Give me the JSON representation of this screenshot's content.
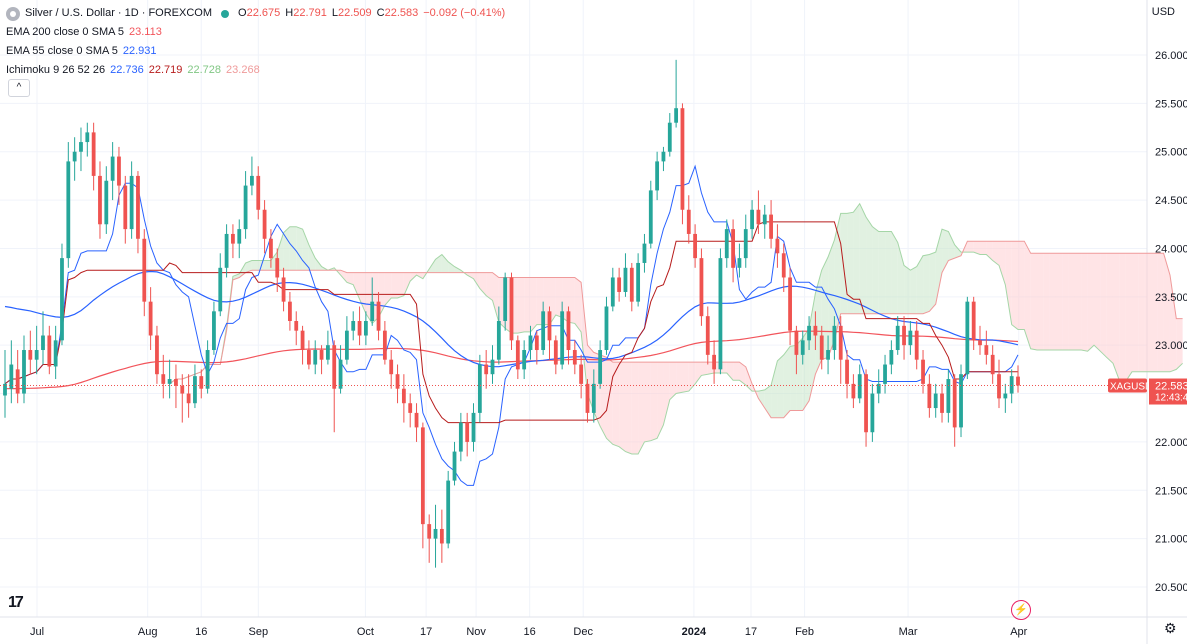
{
  "header": {
    "symbol_title": "Silver / U.S. Dollar · 1D · FOREXCOM",
    "ohlc": [
      {
        "k": "O",
        "v": "22.675"
      },
      {
        "k": "H",
        "v": "22.791"
      },
      {
        "k": "L",
        "v": "22.509"
      },
      {
        "k": "C",
        "v": "22.583"
      }
    ],
    "change": "−0.092 (−0.41%)",
    "ind1_label": "EMA 200 close 0 SMA 5",
    "ind1_value": "23.113",
    "ind2_label": "EMA 55 close 0 SMA 5",
    "ind2_value": "22.931",
    "ind3_label": "Ichimoku 9 26 52 26",
    "ind3_values": [
      "22.736",
      "22.719",
      "22.728",
      "23.268"
    ],
    "collapse_glyph": "^"
  },
  "axis": {
    "currency": "USD"
  },
  "price_tag": {
    "symbol": "XAGUSD",
    "price": "22.583",
    "countdown": "12:43:4"
  },
  "icons": {
    "logo": "tradingview-logo-icon",
    "bolt": "lightning-icon",
    "settings": "gear-icon"
  },
  "logo_text": "17",
  "settings_glyph": "⚙",
  "colors": {
    "up": "#26a69a",
    "down": "#ef5350",
    "ema200": "#f2545b",
    "ema55": "#2962ff",
    "tenkan": "#2962ff",
    "kijun": "#b71c1c",
    "cloud_bull": "#c8e6c9",
    "cloud_bear": "#ffcdd2"
  },
  "chart_data": {
    "type": "candlestick",
    "title": "Silver / U.S. Dollar · 1D · FOREXCOM",
    "ylim": [
      20.3,
      26.4
    ],
    "y_ticks": [
      "26.000",
      "25.500",
      "25.000",
      "24.500",
      "24.000",
      "23.500",
      "23.000",
      "22.500",
      "22.000",
      "21.500",
      "21.000",
      "20.500"
    ],
    "x_ticks": [
      "Jul",
      "Aug",
      "16",
      "Sep",
      "Oct",
      "17",
      "Nov",
      "16",
      "Dec",
      "2024",
      "17",
      "Feb",
      "Mar",
      "Apr"
    ],
    "x_tick_days": [
      0,
      31,
      46,
      62,
      92,
      109,
      123,
      138,
      153,
      184,
      200,
      215,
      244,
      275
    ],
    "candles": [
      {
        "o": 22.48,
        "c": 22.6,
        "h": 22.95,
        "l": 22.25
      },
      {
        "o": 22.55,
        "c": 22.8,
        "h": 23.05,
        "l": 22.4
      },
      {
        "o": 22.75,
        "c": 22.5,
        "h": 22.95,
        "l": 22.4
      },
      {
        "o": 22.5,
        "c": 22.95,
        "h": 23.1,
        "l": 22.4
      },
      {
        "o": 22.95,
        "c": 22.85,
        "h": 23.15,
        "l": 22.7
      },
      {
        "o": 22.85,
        "c": 22.95,
        "h": 23.2,
        "l": 22.7
      },
      {
        "o": 22.95,
        "c": 23.1,
        "h": 23.35,
        "l": 22.8
      },
      {
        "o": 23.1,
        "c": 22.78,
        "h": 23.2,
        "l": 22.7
      },
      {
        "o": 22.78,
        "c": 23.05,
        "h": 23.2,
        "l": 22.65
      },
      {
        "o": 23.05,
        "c": 23.9,
        "h": 24.05,
        "l": 23.0
      },
      {
        "o": 23.9,
        "c": 24.9,
        "h": 25.1,
        "l": 23.8
      },
      {
        "o": 24.9,
        "c": 25.0,
        "h": 25.15,
        "l": 24.7
      },
      {
        "o": 25.0,
        "c": 25.1,
        "h": 25.25,
        "l": 24.8
      },
      {
        "o": 25.1,
        "c": 25.2,
        "h": 25.3,
        "l": 24.95
      },
      {
        "o": 25.2,
        "c": 24.75,
        "h": 25.3,
        "l": 24.6
      },
      {
        "o": 24.75,
        "c": 24.25,
        "h": 24.9,
        "l": 24.1
      },
      {
        "o": 24.25,
        "c": 24.7,
        "h": 24.85,
        "l": 24.15
      },
      {
        "o": 24.7,
        "c": 24.95,
        "h": 25.1,
        "l": 24.5
      },
      {
        "o": 24.95,
        "c": 24.65,
        "h": 25.05,
        "l": 24.45
      },
      {
        "o": 24.65,
        "c": 24.2,
        "h": 24.75,
        "l": 24.05
      },
      {
        "o": 24.2,
        "c": 24.75,
        "h": 24.9,
        "l": 24.1
      },
      {
        "o": 24.75,
        "c": 24.1,
        "h": 24.8,
        "l": 23.95
      },
      {
        "o": 24.1,
        "c": 23.45,
        "h": 24.2,
        "l": 23.3
      },
      {
        "o": 23.45,
        "c": 23.1,
        "h": 23.6,
        "l": 22.95
      },
      {
        "o": 23.1,
        "c": 22.7,
        "h": 23.2,
        "l": 22.6
      },
      {
        "o": 22.7,
        "c": 22.6,
        "h": 22.9,
        "l": 22.45
      },
      {
        "o": 22.6,
        "c": 22.65,
        "h": 22.85,
        "l": 22.45
      },
      {
        "o": 22.65,
        "c": 22.58,
        "h": 22.8,
        "l": 22.35
      },
      {
        "o": 22.58,
        "c": 22.5,
        "h": 22.7,
        "l": 22.2
      },
      {
        "o": 22.5,
        "c": 22.4,
        "h": 22.7,
        "l": 22.25
      },
      {
        "o": 22.4,
        "c": 22.68,
        "h": 22.8,
        "l": 22.35
      },
      {
        "o": 22.68,
        "c": 22.55,
        "h": 22.75,
        "l": 22.45
      },
      {
        "o": 22.55,
        "c": 22.95,
        "h": 23.05,
        "l": 22.5
      },
      {
        "o": 22.95,
        "c": 23.35,
        "h": 23.45,
        "l": 22.9
      },
      {
        "o": 23.35,
        "c": 23.8,
        "h": 23.95,
        "l": 23.3
      },
      {
        "o": 23.8,
        "c": 24.15,
        "h": 24.25,
        "l": 23.7
      },
      {
        "o": 24.15,
        "c": 24.05,
        "h": 24.25,
        "l": 23.9
      },
      {
        "o": 24.05,
        "c": 24.2,
        "h": 24.3,
        "l": 23.9
      },
      {
        "o": 24.2,
        "c": 24.65,
        "h": 24.8,
        "l": 24.1
      },
      {
        "o": 24.65,
        "c": 24.75,
        "h": 24.95,
        "l": 24.55
      },
      {
        "o": 24.75,
        "c": 24.4,
        "h": 24.85,
        "l": 24.3
      },
      {
        "o": 24.4,
        "c": 24.1,
        "h": 24.5,
        "l": 23.95
      },
      {
        "o": 24.1,
        "c": 23.9,
        "h": 24.2,
        "l": 23.8
      },
      {
        "o": 23.9,
        "c": 23.7,
        "h": 24.0,
        "l": 23.55
      },
      {
        "o": 23.7,
        "c": 23.45,
        "h": 23.8,
        "l": 23.35
      },
      {
        "o": 23.45,
        "c": 23.25,
        "h": 23.55,
        "l": 23.15
      },
      {
        "o": 23.25,
        "c": 23.15,
        "h": 23.35,
        "l": 23.0
      },
      {
        "o": 23.15,
        "c": 22.95,
        "h": 23.2,
        "l": 22.8
      },
      {
        "o": 22.95,
        "c": 22.8,
        "h": 23.05,
        "l": 22.75
      },
      {
        "o": 22.8,
        "c": 22.95,
        "h": 23.05,
        "l": 22.7
      },
      {
        "o": 22.95,
        "c": 22.85,
        "h": 23.0,
        "l": 22.7
      },
      {
        "o": 22.85,
        "c": 23.0,
        "h": 23.15,
        "l": 22.8
      },
      {
        "o": 23.0,
        "c": 22.55,
        "h": 23.05,
        "l": 22.1
      },
      {
        "o": 22.55,
        "c": 22.85,
        "h": 23.0,
        "l": 22.5
      },
      {
        "o": 22.85,
        "c": 23.15,
        "h": 23.3,
        "l": 22.8
      },
      {
        "o": 23.15,
        "c": 23.25,
        "h": 23.35,
        "l": 23.05
      },
      {
        "o": 23.25,
        "c": 23.1,
        "h": 23.4,
        "l": 23.0
      },
      {
        "o": 23.1,
        "c": 23.25,
        "h": 23.35,
        "l": 23.0
      },
      {
        "o": 23.25,
        "c": 23.45,
        "h": 23.7,
        "l": 23.2
      },
      {
        "o": 23.45,
        "c": 23.15,
        "h": 23.55,
        "l": 23.05
      },
      {
        "o": 23.15,
        "c": 22.85,
        "h": 23.25,
        "l": 22.8
      },
      {
        "o": 22.85,
        "c": 22.7,
        "h": 22.95,
        "l": 22.55
      },
      {
        "o": 22.7,
        "c": 22.55,
        "h": 22.8,
        "l": 22.4
      },
      {
        "o": 22.55,
        "c": 22.4,
        "h": 22.7,
        "l": 22.2
      },
      {
        "o": 22.4,
        "c": 22.3,
        "h": 22.5,
        "l": 22.15
      },
      {
        "o": 22.3,
        "c": 22.15,
        "h": 22.4,
        "l": 22.0
      },
      {
        "o": 22.15,
        "c": 21.15,
        "h": 22.2,
        "l": 20.9
      },
      {
        "o": 21.15,
        "c": 21.0,
        "h": 21.25,
        "l": 20.75
      },
      {
        "o": 21.0,
        "c": 21.1,
        "h": 21.35,
        "l": 20.7
      },
      {
        "o": 21.1,
        "c": 20.95,
        "h": 21.3,
        "l": 20.75
      },
      {
        "o": 20.95,
        "c": 21.6,
        "h": 21.7,
        "l": 20.9
      },
      {
        "o": 21.6,
        "c": 21.9,
        "h": 22.0,
        "l": 21.55
      },
      {
        "o": 21.9,
        "c": 22.2,
        "h": 22.3,
        "l": 21.8
      },
      {
        "o": 22.2,
        "c": 22.0,
        "h": 22.3,
        "l": 21.85
      },
      {
        "o": 22.0,
        "c": 22.3,
        "h": 22.4,
        "l": 21.9
      },
      {
        "o": 22.3,
        "c": 22.8,
        "h": 22.9,
        "l": 22.2
      },
      {
        "o": 22.8,
        "c": 22.7,
        "h": 22.95,
        "l": 22.55
      },
      {
        "o": 22.7,
        "c": 22.85,
        "h": 23.0,
        "l": 22.6
      },
      {
        "o": 22.85,
        "c": 23.25,
        "h": 23.4,
        "l": 22.8
      },
      {
        "o": 23.25,
        "c": 23.7,
        "h": 23.75,
        "l": 23.15
      },
      {
        "o": 23.7,
        "c": 23.05,
        "h": 23.75,
        "l": 22.95
      },
      {
        "o": 23.05,
        "c": 22.75,
        "h": 23.1,
        "l": 22.65
      },
      {
        "o": 22.75,
        "c": 22.95,
        "h": 23.05,
        "l": 22.65
      },
      {
        "o": 22.95,
        "c": 23.1,
        "h": 23.2,
        "l": 22.85
      },
      {
        "o": 23.1,
        "c": 22.95,
        "h": 23.15,
        "l": 22.8
      },
      {
        "o": 22.95,
        "c": 23.35,
        "h": 23.45,
        "l": 22.9
      },
      {
        "o": 23.35,
        "c": 23.05,
        "h": 23.4,
        "l": 22.85
      },
      {
        "o": 23.05,
        "c": 22.8,
        "h": 23.1,
        "l": 22.7
      },
      {
        "o": 22.8,
        "c": 23.35,
        "h": 23.45,
        "l": 22.75
      },
      {
        "o": 23.35,
        "c": 22.95,
        "h": 23.4,
        "l": 22.8
      },
      {
        "o": 22.95,
        "c": 22.8,
        "h": 23.05,
        "l": 22.7
      },
      {
        "o": 22.8,
        "c": 22.6,
        "h": 22.9,
        "l": 22.45
      },
      {
        "o": 22.6,
        "c": 22.3,
        "h": 22.65,
        "l": 22.2
      },
      {
        "o": 22.3,
        "c": 22.6,
        "h": 22.75,
        "l": 22.2
      },
      {
        "o": 22.6,
        "c": 22.95,
        "h": 23.05,
        "l": 22.55
      },
      {
        "o": 22.95,
        "c": 23.4,
        "h": 23.5,
        "l": 22.9
      },
      {
        "o": 23.4,
        "c": 23.7,
        "h": 23.8,
        "l": 23.35
      },
      {
        "o": 23.7,
        "c": 23.55,
        "h": 23.8,
        "l": 23.45
      },
      {
        "o": 23.55,
        "c": 23.8,
        "h": 23.95,
        "l": 23.5
      },
      {
        "o": 23.8,
        "c": 23.45,
        "h": 23.85,
        "l": 23.35
      },
      {
        "o": 23.45,
        "c": 23.85,
        "h": 23.95,
        "l": 23.4
      },
      {
        "o": 23.85,
        "c": 24.05,
        "h": 24.15,
        "l": 23.75
      },
      {
        "o": 24.05,
        "c": 24.6,
        "h": 24.7,
        "l": 24.0
      },
      {
        "o": 24.6,
        "c": 24.9,
        "h": 25.0,
        "l": 24.5
      },
      {
        "o": 24.9,
        "c": 25.0,
        "h": 25.05,
        "l": 24.8
      },
      {
        "o": 25.0,
        "c": 25.3,
        "h": 25.4,
        "l": 24.95
      },
      {
        "o": 25.3,
        "c": 25.45,
        "h": 25.95,
        "l": 25.25
      },
      {
        "o": 25.45,
        "c": 24.4,
        "h": 25.5,
        "l": 24.25
      },
      {
        "o": 24.4,
        "c": 24.15,
        "h": 24.55,
        "l": 24.05
      },
      {
        "o": 24.15,
        "c": 23.9,
        "h": 24.25,
        "l": 23.8
      },
      {
        "o": 23.9,
        "c": 23.3,
        "h": 24.0,
        "l": 23.2
      },
      {
        "o": 23.3,
        "c": 22.9,
        "h": 23.4,
        "l": 22.8
      },
      {
        "o": 22.9,
        "c": 22.75,
        "h": 23.05,
        "l": 22.6
      },
      {
        "o": 22.75,
        "c": 23.9,
        "h": 24.0,
        "l": 22.7
      },
      {
        "o": 23.9,
        "c": 24.2,
        "h": 24.3,
        "l": 23.8
      },
      {
        "o": 24.2,
        "c": 23.8,
        "h": 24.3,
        "l": 23.65
      },
      {
        "o": 23.8,
        "c": 23.9,
        "h": 24.05,
        "l": 23.7
      },
      {
        "o": 23.9,
        "c": 24.2,
        "h": 24.35,
        "l": 23.8
      },
      {
        "o": 24.2,
        "c": 24.4,
        "h": 24.5,
        "l": 24.1
      },
      {
        "o": 24.4,
        "c": 24.25,
        "h": 24.6,
        "l": 24.15
      },
      {
        "o": 24.25,
        "c": 24.35,
        "h": 24.45,
        "l": 24.1
      },
      {
        "o": 24.35,
        "c": 24.1,
        "h": 24.5,
        "l": 24.0
      },
      {
        "o": 24.1,
        "c": 23.95,
        "h": 24.25,
        "l": 23.8
      },
      {
        "o": 23.95,
        "c": 23.7,
        "h": 24.05,
        "l": 23.55
      },
      {
        "o": 23.7,
        "c": 23.15,
        "h": 23.8,
        "l": 23.0
      },
      {
        "o": 23.15,
        "c": 22.9,
        "h": 23.2,
        "l": 22.7
      },
      {
        "o": 22.9,
        "c": 23.05,
        "h": 23.15,
        "l": 22.8
      },
      {
        "o": 23.05,
        "c": 23.2,
        "h": 23.3,
        "l": 22.95
      },
      {
        "o": 23.2,
        "c": 23.1,
        "h": 23.35,
        "l": 22.95
      },
      {
        "o": 23.1,
        "c": 22.85,
        "h": 23.2,
        "l": 22.75
      },
      {
        "o": 22.85,
        "c": 22.95,
        "h": 23.1,
        "l": 22.7
      },
      {
        "o": 22.95,
        "c": 23.2,
        "h": 23.3,
        "l": 22.85
      },
      {
        "o": 23.2,
        "c": 22.85,
        "h": 23.3,
        "l": 22.6
      },
      {
        "o": 22.85,
        "c": 22.6,
        "h": 22.95,
        "l": 22.45
      },
      {
        "o": 22.6,
        "c": 22.45,
        "h": 22.7,
        "l": 22.35
      },
      {
        "o": 22.45,
        "c": 22.7,
        "h": 22.8,
        "l": 22.4
      },
      {
        "o": 22.7,
        "c": 22.1,
        "h": 22.75,
        "l": 21.95
      },
      {
        "o": 22.1,
        "c": 22.5,
        "h": 22.6,
        "l": 22.0
      },
      {
        "o": 22.5,
        "c": 22.6,
        "h": 22.75,
        "l": 22.4
      },
      {
        "o": 22.6,
        "c": 22.8,
        "h": 22.9,
        "l": 22.5
      },
      {
        "o": 22.8,
        "c": 22.95,
        "h": 23.05,
        "l": 22.7
      },
      {
        "o": 22.95,
        "c": 23.2,
        "h": 23.3,
        "l": 22.9
      },
      {
        "o": 23.2,
        "c": 23.0,
        "h": 23.3,
        "l": 22.85
      },
      {
        "o": 23.0,
        "c": 23.15,
        "h": 23.25,
        "l": 22.9
      },
      {
        "o": 23.15,
        "c": 22.85,
        "h": 23.25,
        "l": 22.75
      },
      {
        "o": 22.85,
        "c": 22.6,
        "h": 22.95,
        "l": 22.5
      },
      {
        "o": 22.6,
        "c": 22.35,
        "h": 22.7,
        "l": 22.25
      },
      {
        "o": 22.35,
        "c": 22.5,
        "h": 22.6,
        "l": 22.25
      },
      {
        "o": 22.5,
        "c": 22.3,
        "h": 22.6,
        "l": 22.2
      },
      {
        "o": 22.3,
        "c": 22.65,
        "h": 22.75,
        "l": 22.2
      },
      {
        "o": 22.65,
        "c": 22.15,
        "h": 22.7,
        "l": 21.95
      },
      {
        "o": 22.15,
        "c": 22.7,
        "h": 22.8,
        "l": 22.05
      },
      {
        "o": 22.7,
        "c": 23.45,
        "h": 23.5,
        "l": 22.65
      },
      {
        "o": 23.45,
        "c": 23.05,
        "h": 23.5,
        "l": 22.95
      },
      {
        "o": 23.05,
        "c": 23.0,
        "h": 23.2,
        "l": 22.9
      },
      {
        "o": 23.0,
        "c": 22.9,
        "h": 23.15,
        "l": 22.8
      },
      {
        "o": 22.9,
        "c": 22.7,
        "h": 23.0,
        "l": 22.6
      },
      {
        "o": 22.7,
        "c": 22.45,
        "h": 22.85,
        "l": 22.35
      },
      {
        "o": 22.45,
        "c": 22.5,
        "h": 22.6,
        "l": 22.3
      },
      {
        "o": 22.5,
        "c": 22.68,
        "h": 22.75,
        "l": 22.4
      },
      {
        "o": 22.675,
        "c": 22.583,
        "h": 22.791,
        "l": 22.509
      }
    ]
  }
}
